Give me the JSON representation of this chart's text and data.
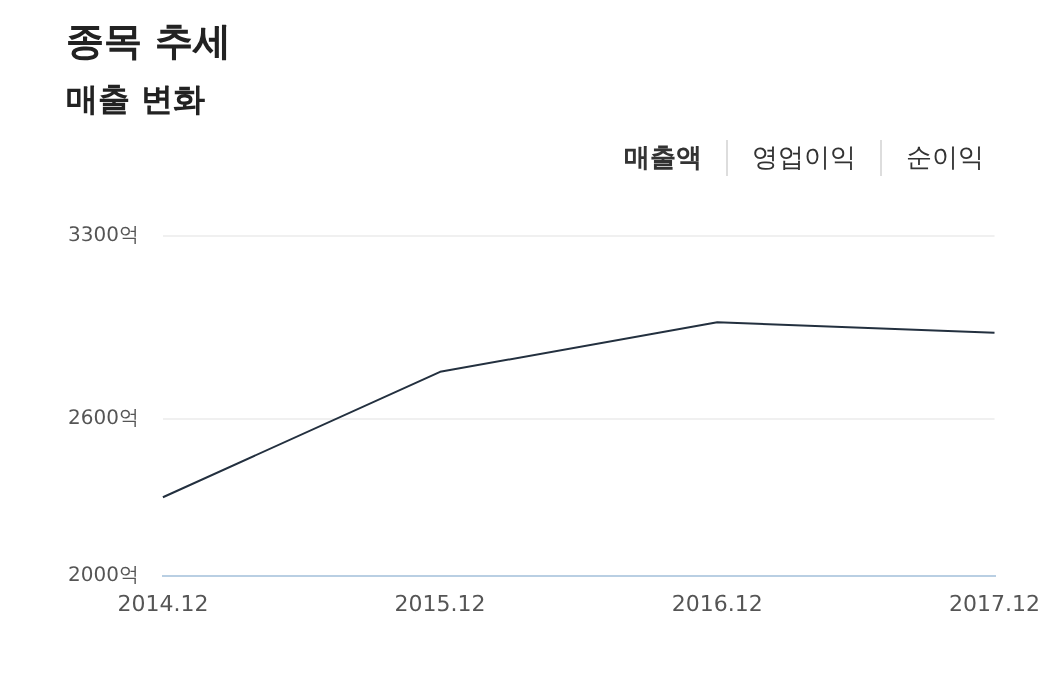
{
  "chart_data": {
    "type": "line",
    "title": "종목 추세",
    "subtitle": "매출 변화",
    "annotations": [
      "매출액",
      "영업이익",
      "순이익"
    ],
    "categories": [
      "2014.12",
      "2015.12",
      "2016.12",
      "2017.12"
    ],
    "series": [
      {
        "color": "#23303f",
        "values": [
          2300,
          2780,
          2970,
          2930
        ]
      }
    ],
    "ylim": [
      2000,
      3300
    ],
    "yticks": [
      {
        "value": 2000,
        "label": "2000억"
      },
      {
        "value": 2600,
        "label": "2600억"
      },
      {
        "value": 3300,
        "label": "3300억"
      }
    ],
    "grid": "y",
    "legend": false,
    "marker": "none",
    "line_style": "solid"
  }
}
